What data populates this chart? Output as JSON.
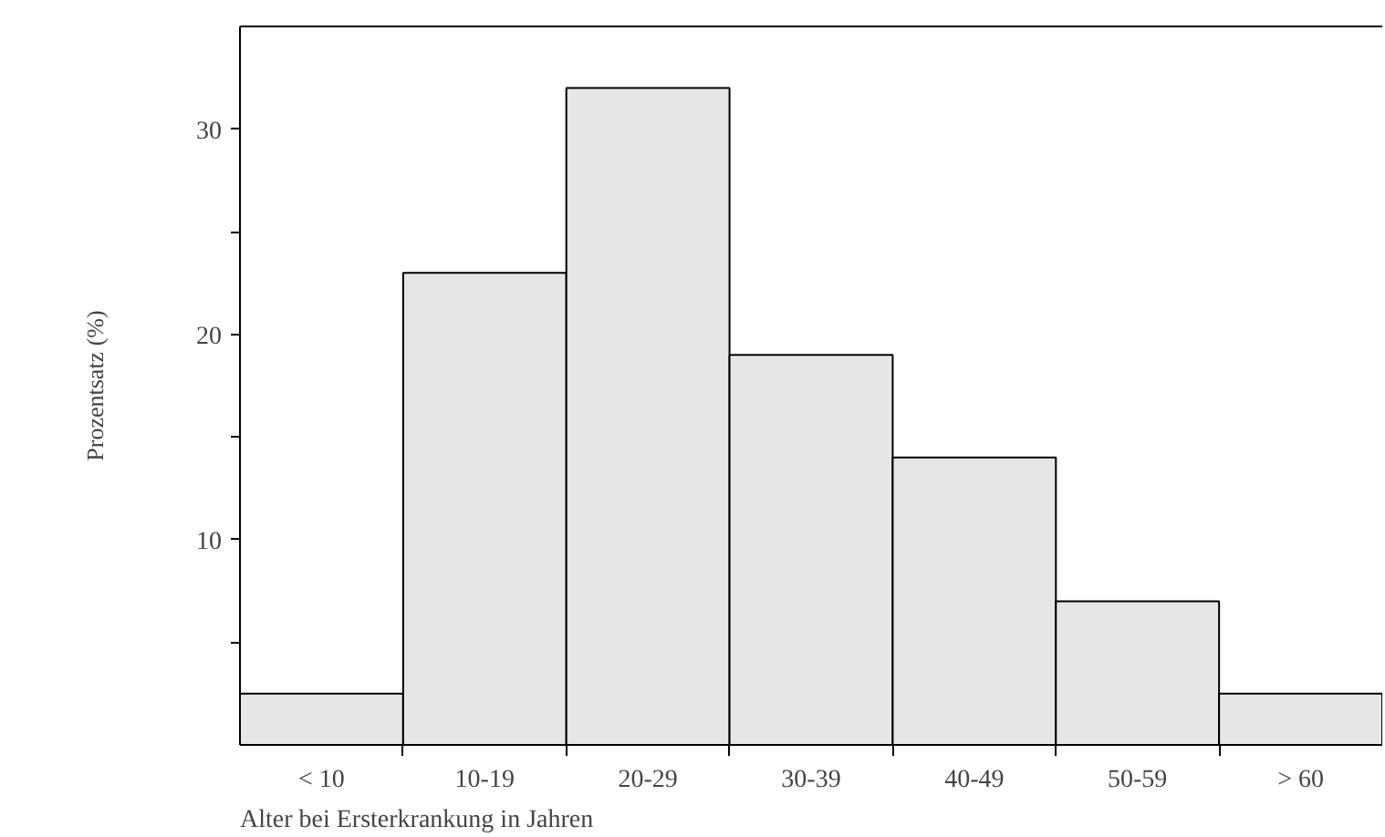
{
  "chart_data": {
    "type": "bar",
    "categories": [
      "< 10",
      "10-19",
      "20-29",
      "30-39",
      "40-49",
      "50-59",
      "> 60"
    ],
    "values": [
      2.5,
      23,
      32,
      19,
      14,
      7,
      2.5
    ],
    "color": "#e6e6e6",
    "xlabel": "Alter bei Ersterkrankung in Jahren",
    "ylabel": "Prozentsatz (%)",
    "ylim": [
      0,
      35
    ],
    "yticks": [
      {
        "value": 5,
        "label": null
      },
      10,
      {
        "value": 15,
        "label": null
      },
      20,
      {
        "value": 25,
        "label": null
      },
      30
    ],
    "grid": false
  }
}
